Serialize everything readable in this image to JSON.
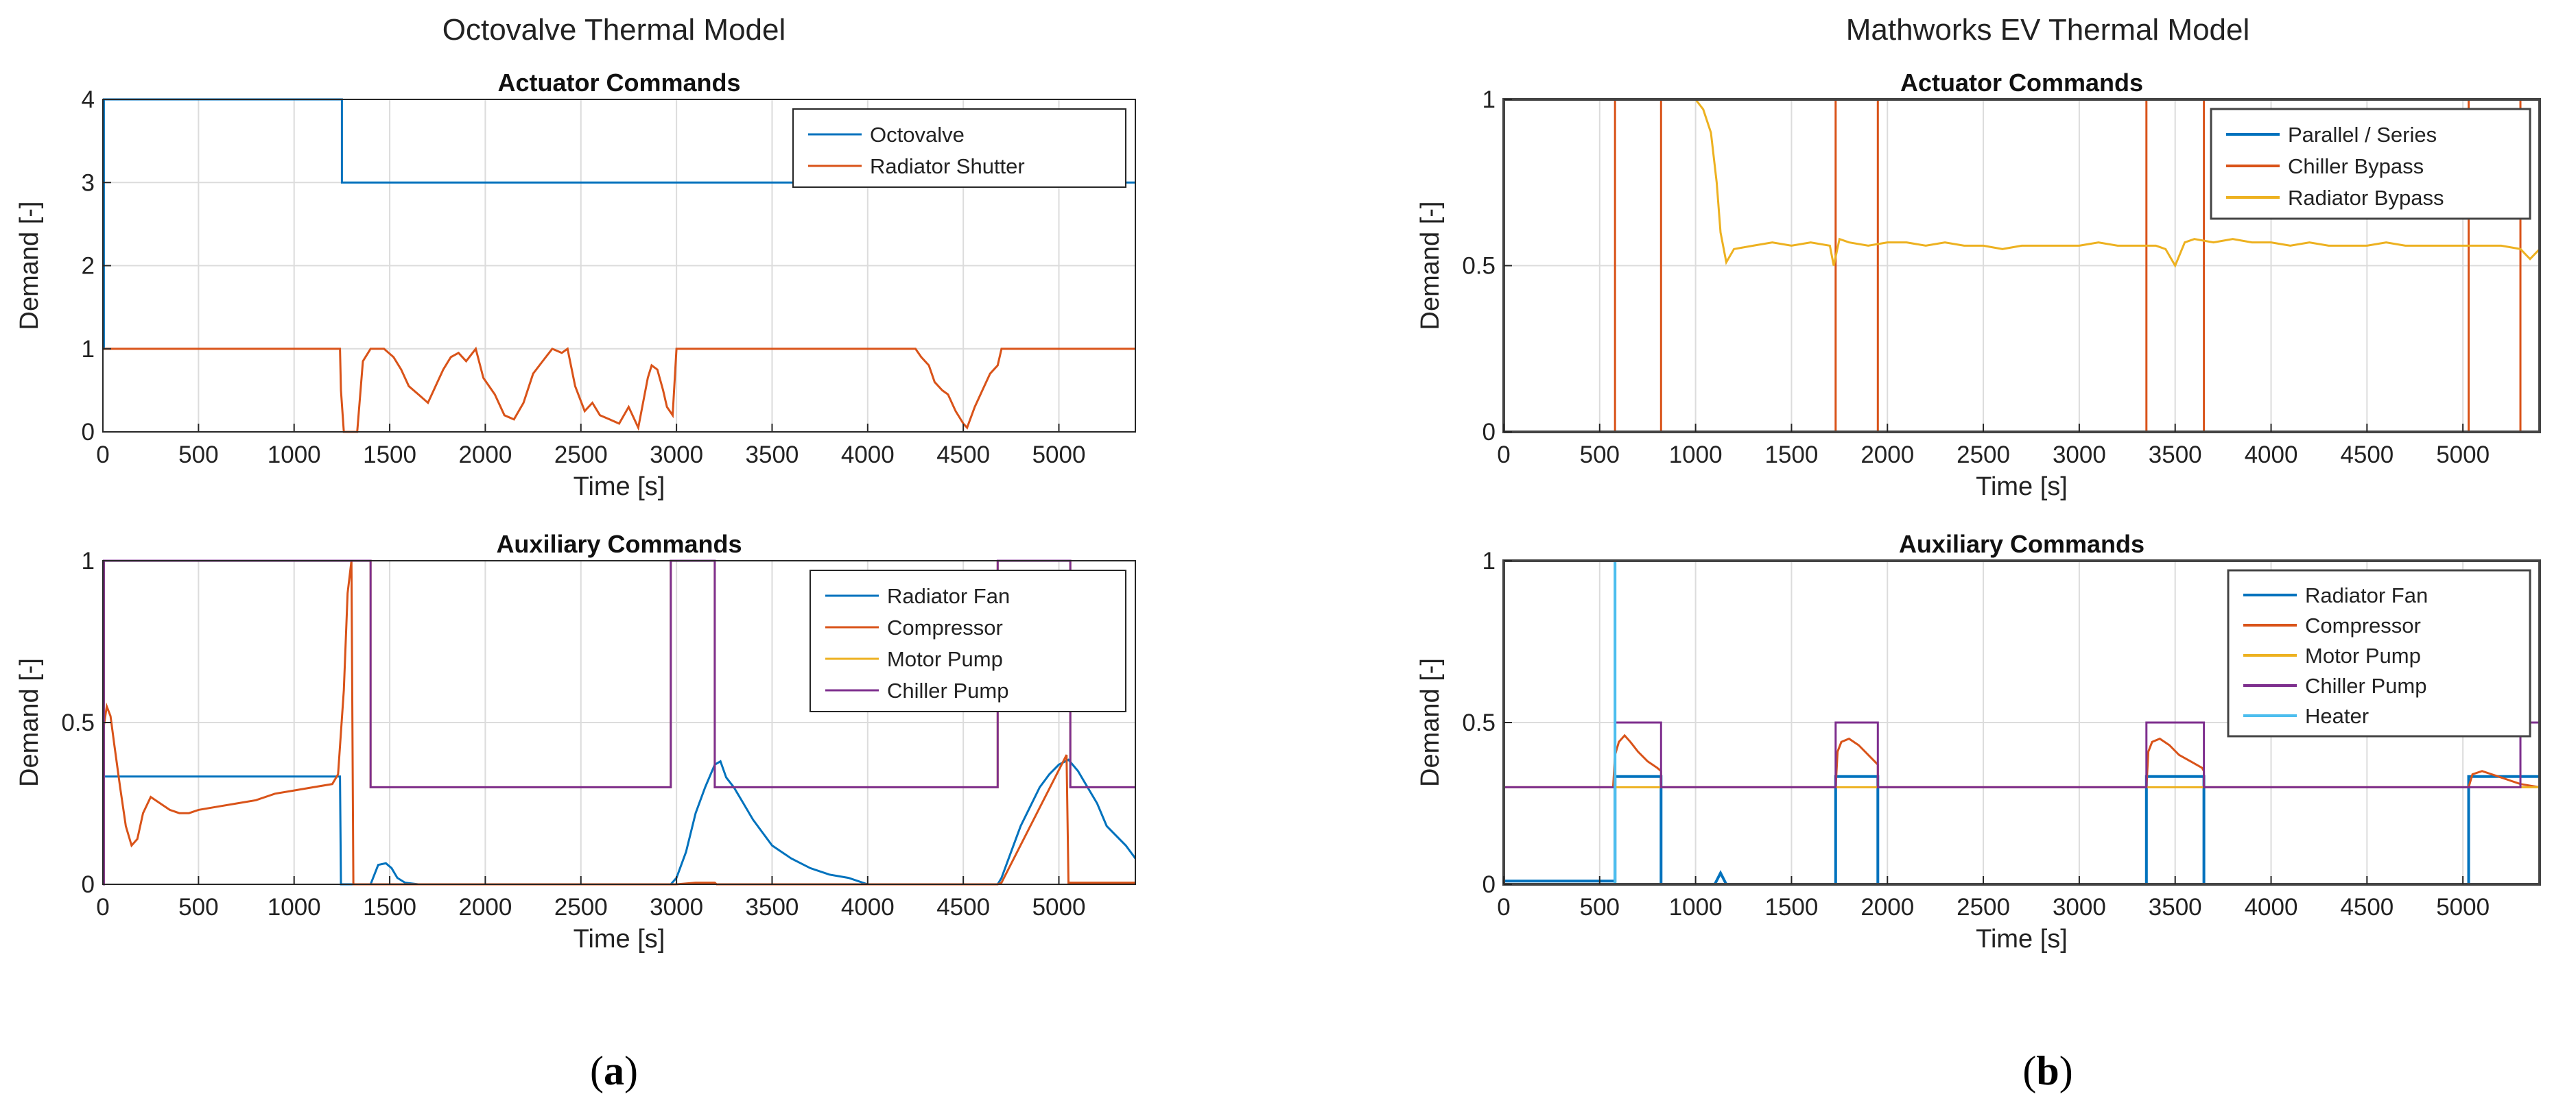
{
  "panels": [
    {
      "title": "Octovalve Thermal Model",
      "label_open": "(",
      "label_letter": "a",
      "label_close": ")"
    },
    {
      "title": "Mathworks EV Thermal Model",
      "label_open": "(",
      "label_letter": "b",
      "label_close": ")"
    }
  ],
  "chart_data": [
    {
      "type": "line",
      "panel": "a",
      "title": "Actuator Commands",
      "xlabel": "Time [s]",
      "ylabel": "Demand [-]",
      "xlim": [
        0,
        5400
      ],
      "ylim": [
        0,
        4
      ],
      "xticks": [
        0,
        500,
        1000,
        1500,
        2000,
        2500,
        3000,
        3500,
        4000,
        4500,
        5000
      ],
      "yticks": [
        0,
        1,
        2,
        3,
        4
      ],
      "ytick_labels": [
        "0",
        "1",
        "2",
        "3",
        "4"
      ],
      "legend_position": "top-right",
      "series": [
        {
          "name": "Octovalve",
          "color": "#0072BD",
          "x": [
            0,
            5,
            5,
            1250,
            1250,
            5400
          ],
          "y": [
            1,
            1,
            4,
            4,
            3,
            3
          ]
        },
        {
          "name": "Radiator Shutter",
          "color": "#D95319",
          "x": [
            0,
            1240,
            1245,
            1260,
            1300,
            1330,
            1360,
            1400,
            1430,
            1470,
            1520,
            1560,
            1600,
            1650,
            1700,
            1750,
            1780,
            1820,
            1860,
            1900,
            1950,
            1990,
            2050,
            2100,
            2150,
            2200,
            2250,
            2300,
            2350,
            2400,
            2430,
            2470,
            2520,
            2560,
            2600,
            2650,
            2700,
            2750,
            2800,
            2850,
            2870,
            2900,
            2930,
            2950,
            2980,
            3000,
            4250,
            4280,
            4320,
            4350,
            4390,
            4420,
            4460,
            4500,
            4520,
            4560,
            4600,
            4640,
            4680,
            4700,
            5400
          ],
          "y": [
            1,
            1,
            0.5,
            0,
            0,
            0,
            0.85,
            1,
            1,
            1,
            0.9,
            0.75,
            0.55,
            0.45,
            0.35,
            0.6,
            0.75,
            0.9,
            0.95,
            0.85,
            1,
            0.65,
            0.45,
            0.2,
            0.15,
            0.35,
            0.7,
            0.85,
            1,
            0.95,
            1,
            0.55,
            0.25,
            0.35,
            0.2,
            0.15,
            0.1,
            0.3,
            0.05,
            0.65,
            0.8,
            0.75,
            0.5,
            0.3,
            0.2,
            1,
            1,
            0.9,
            0.8,
            0.6,
            0.5,
            0.45,
            0.25,
            0.1,
            0.05,
            0.3,
            0.5,
            0.7,
            0.8,
            1,
            1
          ]
        }
      ]
    },
    {
      "type": "line",
      "panel": "a",
      "title": "Auxiliary Commands",
      "xlabel": "Time [s]",
      "ylabel": "Demand [-]",
      "xlim": [
        0,
        5400
      ],
      "ylim": [
        0,
        1
      ],
      "xticks": [
        0,
        500,
        1000,
        1500,
        2000,
        2500,
        3000,
        3500,
        4000,
        4500,
        5000
      ],
      "yticks": [
        0,
        0.5,
        1
      ],
      "ytick_labels": [
        "0",
        "0.5",
        "1"
      ],
      "legend_position": "top-right",
      "series": [
        {
          "name": "Radiator Fan",
          "color": "#0072BD",
          "x": [
            0,
            5,
            5,
            1240,
            1245,
            1400,
            1440,
            1480,
            1510,
            1540,
            1580,
            1650,
            2970,
            3000,
            3050,
            3100,
            3150,
            3200,
            3230,
            3260,
            3300,
            3350,
            3400,
            3450,
            3500,
            3600,
            3700,
            3800,
            3900,
            4000,
            4680,
            4700,
            4750,
            4800,
            4850,
            4900,
            4950,
            5000,
            5050,
            5100,
            5150,
            5200,
            5250,
            5300,
            5350,
            5400
          ],
          "y": [
            1,
            1,
            0.333,
            0.333,
            0,
            0,
            0.06,
            0.065,
            0.05,
            0.02,
            0.005,
            0,
            0,
            0.02,
            0.1,
            0.22,
            0.3,
            0.37,
            0.38,
            0.33,
            0.3,
            0.25,
            0.2,
            0.16,
            0.12,
            0.08,
            0.05,
            0.03,
            0.02,
            0,
            0,
            0.02,
            0.1,
            0.18,
            0.24,
            0.3,
            0.34,
            0.37,
            0.385,
            0.35,
            0.3,
            0.25,
            0.18,
            0.15,
            0.12,
            0.08
          ]
        },
        {
          "name": "Compressor",
          "color": "#D95319",
          "x": [
            0,
            20,
            40,
            60,
            90,
            120,
            150,
            180,
            210,
            250,
            300,
            350,
            400,
            450,
            500,
            600,
            700,
            800,
            900,
            1000,
            1100,
            1200,
            1230,
            1260,
            1280,
            1300,
            1310,
            3000,
            3100,
            3150,
            3200,
            3210,
            4680,
            4700,
            5040,
            5050,
            5400
          ],
          "y": [
            0.47,
            0.55,
            0.52,
            0.43,
            0.3,
            0.18,
            0.12,
            0.14,
            0.22,
            0.27,
            0.25,
            0.23,
            0.22,
            0.22,
            0.23,
            0.24,
            0.25,
            0.26,
            0.28,
            0.29,
            0.3,
            0.31,
            0.34,
            0.6,
            0.9,
            1,
            0,
            0,
            0.005,
            0.005,
            0.005,
            0,
            0,
            0.005,
            0.4,
            0.005,
            0.005
          ]
        },
        {
          "name": "Motor Pump",
          "color": "#EDB120",
          "x": [
            0,
            5,
            5,
            1400,
            1400,
            2970,
            2970,
            3200,
            3200,
            4680,
            4680,
            5060,
            5060,
            5400
          ],
          "y": [
            0,
            0,
            1,
            1,
            0.3,
            0.3,
            1,
            1,
            0.3,
            0.3,
            1,
            1,
            0.3,
            0.3
          ]
        },
        {
          "name": "Chiller Pump",
          "color": "#7E2F8E",
          "x": [
            0,
            5,
            5,
            1400,
            1400,
            2970,
            2970,
            3200,
            3200,
            4680,
            4680,
            5060,
            5060,
            5400
          ],
          "y": [
            0,
            0,
            1,
            1,
            0.3,
            0.3,
            1,
            1,
            0.3,
            0.3,
            1,
            1,
            0.3,
            0.3
          ]
        }
      ]
    },
    {
      "type": "line",
      "panel": "b",
      "title": "Actuator Commands",
      "xlabel": "Time [s]",
      "ylabel": "Demand [-]",
      "xlim": [
        0,
        5400
      ],
      "ylim": [
        0,
        1
      ],
      "xticks": [
        0,
        500,
        1000,
        1500,
        2000,
        2500,
        3000,
        3500,
        4000,
        4500,
        5000
      ],
      "yticks": [
        0,
        0.5,
        1
      ],
      "ytick_labels": [
        "0",
        "0.5",
        "1"
      ],
      "legend_position": "top-right",
      "series": [
        {
          "name": "Parallel / Series",
          "color": "#0072BD",
          "x": [
            0,
            5400
          ],
          "y": [
            0,
            0
          ]
        },
        {
          "name": "Chiller Bypass",
          "color": "#D95319",
          "x": [
            0,
            580,
            580,
            820,
            820,
            1730,
            1730,
            1950,
            1950,
            3350,
            3350,
            3650,
            3650,
            5030,
            5030,
            5300,
            5300,
            5400
          ],
          "y": [
            1,
            1,
            0,
            0,
            1,
            1,
            0,
            0,
            1,
            1,
            0,
            0,
            1,
            1,
            0,
            0,
            1,
            1
          ]
        },
        {
          "name": "Radiator Bypass",
          "color": "#EDB120",
          "x": [
            0,
            950,
            1000,
            1040,
            1080,
            1110,
            1130,
            1160,
            1200,
            1300,
            1400,
            1500,
            1600,
            1700,
            1720,
            1750,
            1800,
            1900,
            2000,
            2100,
            2200,
            2300,
            2400,
            2500,
            2600,
            2700,
            2800,
            2900,
            3000,
            3100,
            3200,
            3300,
            3400,
            3450,
            3500,
            3550,
            3600,
            3700,
            3800,
            3900,
            4000,
            4100,
            4200,
            4300,
            4400,
            4500,
            4600,
            4700,
            4800,
            4900,
            5000,
            5100,
            5200,
            5300,
            5350,
            5400
          ],
          "y": [
            1,
            1,
            1,
            0.97,
            0.9,
            0.75,
            0.6,
            0.51,
            0.55,
            0.56,
            0.57,
            0.56,
            0.57,
            0.56,
            0.5,
            0.58,
            0.57,
            0.56,
            0.57,
            0.57,
            0.56,
            0.57,
            0.56,
            0.56,
            0.55,
            0.56,
            0.56,
            0.56,
            0.56,
            0.57,
            0.56,
            0.56,
            0.56,
            0.55,
            0.5,
            0.57,
            0.58,
            0.57,
            0.58,
            0.57,
            0.57,
            0.56,
            0.57,
            0.56,
            0.56,
            0.56,
            0.57,
            0.56,
            0.56,
            0.56,
            0.56,
            0.56,
            0.56,
            0.55,
            0.52,
            0.55
          ]
        }
      ]
    },
    {
      "type": "line",
      "panel": "b",
      "title": "Auxiliary Commands",
      "xlabel": "Time [s]",
      "ylabel": "Demand [-]",
      "xlim": [
        0,
        5400
      ],
      "ylim": [
        0,
        1
      ],
      "xticks": [
        0,
        500,
        1000,
        1500,
        2000,
        2500,
        3000,
        3500,
        4000,
        4500,
        5000
      ],
      "yticks": [
        0,
        0.5,
        1
      ],
      "ytick_labels": [
        "0",
        "0.5",
        "1"
      ],
      "legend_position": "top-right",
      "series": [
        {
          "name": "Radiator Fan",
          "color": "#0072BD",
          "x": [
            0,
            580,
            580,
            820,
            820,
            1100,
            1130,
            1160,
            1730,
            1730,
            1950,
            1950,
            3350,
            3350,
            3650,
            3650,
            5030,
            5030,
            5400
          ],
          "y": [
            0.01,
            0.01,
            0.333,
            0.333,
            0,
            0,
            0.035,
            0,
            0,
            0.333,
            0.333,
            0,
            0,
            0.333,
            0.333,
            0,
            0,
            0.333,
            0.333
          ]
        },
        {
          "name": "Compressor",
          "color": "#D95319",
          "x": [
            0,
            570,
            580,
            600,
            630,
            660,
            700,
            750,
            800,
            820,
            820,
            1730,
            1740,
            1760,
            1800,
            1850,
            1900,
            1950,
            1950,
            3350,
            3360,
            3380,
            3420,
            3470,
            3520,
            3580,
            3640,
            3650,
            3650,
            5030,
            5050,
            5100,
            5150,
            5200,
            5250,
            5300,
            5400
          ],
          "y": [
            0.3,
            0.3,
            0.4,
            0.44,
            0.46,
            0.44,
            0.41,
            0.38,
            0.36,
            0.35,
            0.3,
            0.3,
            0.41,
            0.44,
            0.45,
            0.43,
            0.4,
            0.37,
            0.3,
            0.3,
            0.41,
            0.44,
            0.45,
            0.43,
            0.4,
            0.38,
            0.36,
            0.35,
            0.3,
            0.3,
            0.34,
            0.35,
            0.34,
            0.33,
            0.32,
            0.31,
            0.3
          ]
        },
        {
          "name": "Motor Pump",
          "color": "#EDB120",
          "x": [
            0,
            5400
          ],
          "y": [
            0.3,
            0.3
          ]
        },
        {
          "name": "Chiller Pump",
          "color": "#7E2F8E",
          "x": [
            0,
            580,
            580,
            820,
            820,
            1730,
            1730,
            1950,
            1950,
            3350,
            3350,
            3650,
            3650,
            5030,
            5030,
            5300,
            5300,
            5400
          ],
          "y": [
            0.3,
            0.3,
            0.5,
            0.5,
            0.3,
            0.3,
            0.5,
            0.5,
            0.3,
            0.3,
            0.5,
            0.5,
            0.3,
            0.3,
            0.3,
            0.3,
            0.5,
            0.5
          ]
        },
        {
          "name": "Heater",
          "color": "#4DBEEE",
          "x": [
            0,
            580,
            580,
            5400
          ],
          "y": [
            1,
            1,
            0,
            0
          ]
        }
      ]
    }
  ]
}
